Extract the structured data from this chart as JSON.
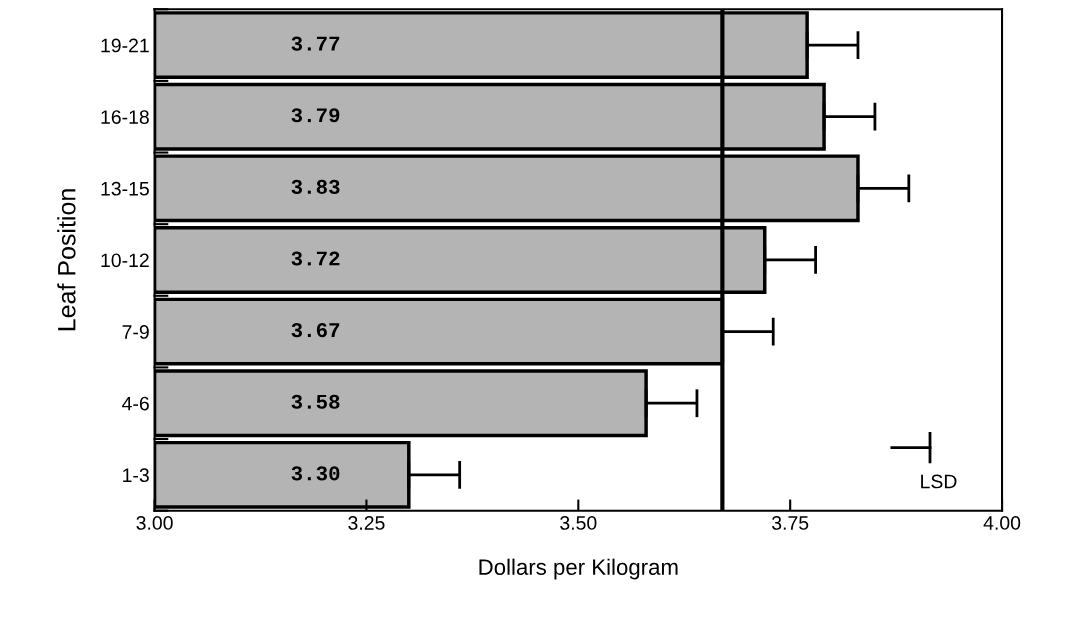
{
  "chart_data": {
    "type": "bar",
    "orientation": "horizontal",
    "xlabel": "Dollars per Kilogram",
    "ylabel": "Leaf Position",
    "categories": [
      "19-21",
      "16-18",
      "13-15",
      "10-12",
      "7-9",
      "4-6",
      "1-3"
    ],
    "values": [
      3.77,
      3.79,
      3.83,
      3.72,
      3.67,
      3.58,
      3.3
    ],
    "errors": [
      [
        3.77,
        3.83
      ],
      [
        3.79,
        3.85
      ],
      [
        3.83,
        3.89
      ],
      [
        3.72,
        3.78
      ],
      [
        3.67,
        3.73
      ],
      [
        3.58,
        3.64
      ],
      [
        3.3,
        3.36
      ]
    ],
    "color": "#b4b4b4",
    "value_labels": [
      "3.77",
      "3.79",
      "3.83",
      "3.72",
      "3.67",
      "3.58",
      "3.30"
    ],
    "xlim": [
      3.0,
      4.0
    ],
    "xticks": [
      {
        "value": 3.0,
        "label": "3.00"
      },
      {
        "value": 3.25,
        "label": "3.25"
      },
      {
        "value": 3.5,
        "label": "3.50"
      },
      {
        "value": 3.75,
        "label": "3.75"
      },
      {
        "value": 4.0,
        "label": "4.00"
      }
    ],
    "ref_lines": [
      {
        "axis": "x",
        "value": 3.67,
        "color": "#000000"
      }
    ],
    "annotations": [
      "LSD"
    ],
    "grid": false,
    "legend": false
  }
}
